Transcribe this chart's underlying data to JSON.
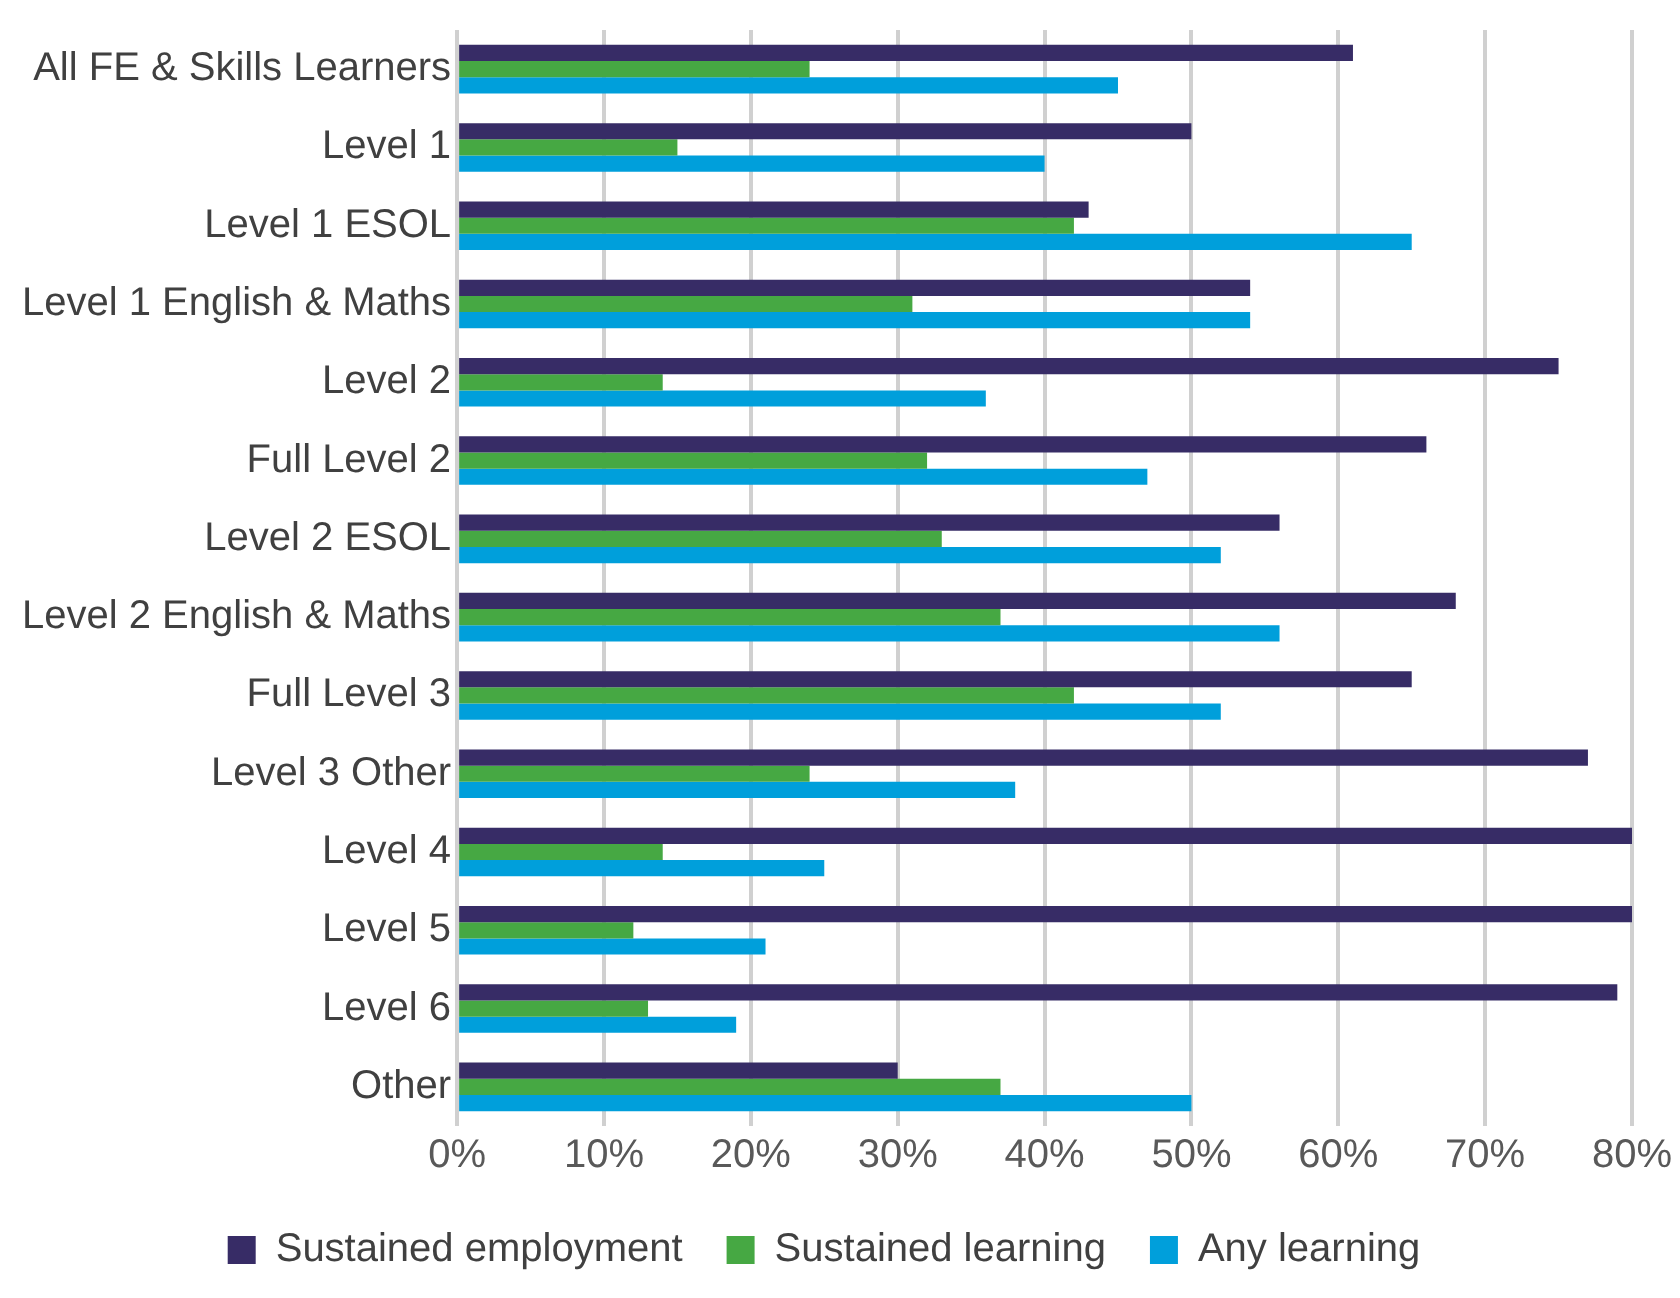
{
  "chart_data": {
    "type": "bar",
    "orientation": "horizontal",
    "categories": [
      "All FE & Skills Learners",
      "Level 1",
      "Level 1 ESOL",
      "Level 1 English & Maths",
      "Level 2",
      "Full Level 2",
      "Level 2 ESOL",
      "Level 2 English & Maths",
      "Full Level 3",
      "Level 3 Other",
      "Level 4",
      "Level 5",
      "Level 6",
      "Other"
    ],
    "series": [
      {
        "name": "Sustained employment",
        "color": "#372c66",
        "values": [
          61,
          50,
          43,
          54,
          75,
          66,
          56,
          68,
          65,
          77,
          80,
          80,
          79,
          30
        ]
      },
      {
        "name": "Sustained learning",
        "color": "#46a843",
        "values": [
          24,
          15,
          42,
          31,
          14,
          32,
          33,
          37,
          42,
          24,
          14,
          12,
          13,
          37
        ]
      },
      {
        "name": "Any learning",
        "color": "#009fdb",
        "values": [
          45,
          40,
          65,
          54,
          36,
          47,
          52,
          56,
          52,
          38,
          25,
          21,
          19,
          50
        ]
      }
    ],
    "xlim": [
      0,
      80
    ],
    "xticks": [
      {
        "value": 0,
        "label": "0%"
      },
      {
        "value": 10,
        "label": "10%"
      },
      {
        "value": 20,
        "label": "20%"
      },
      {
        "value": 30,
        "label": "30%"
      },
      {
        "value": 40,
        "label": "40%"
      },
      {
        "value": 50,
        "label": "50%"
      },
      {
        "value": 60,
        "label": "60%"
      },
      {
        "value": 70,
        "label": "70%"
      },
      {
        "value": 80,
        "label": "80%"
      }
    ],
    "grid": "x",
    "legend": "bottom"
  }
}
